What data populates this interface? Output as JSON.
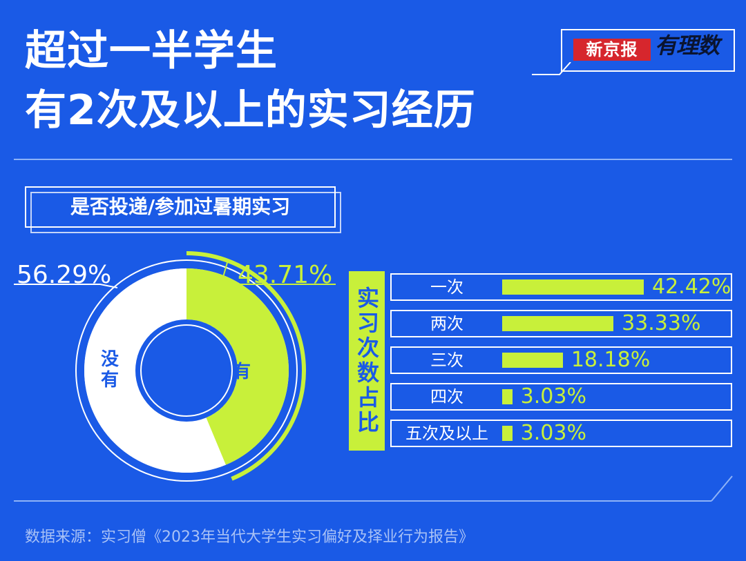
{
  "title": {
    "line1": "超过一半学生",
    "line2": "有2次及以上的实习经历"
  },
  "brand": {
    "newspaper": "新京报",
    "column": "有理数"
  },
  "colors": {
    "background": "#1a5ae6",
    "accent": "#c8f03a",
    "white": "#ffffff",
    "brand_red": "#d6262d"
  },
  "source_text": "数据来源：实习僧《2023年当代大学生实习偏好及择业行为报告》",
  "chart_data": [
    {
      "type": "pie",
      "title": "是否投递/参加过暑期实习",
      "slices": [
        {
          "label": "没有",
          "value": 56.29,
          "display": "56.29%"
        },
        {
          "label": "有",
          "value": 43.71,
          "display": "43.71%"
        }
      ]
    },
    {
      "type": "bar",
      "title": "实习次数占比",
      "categories": [
        "一次",
        "两次",
        "三次",
        "四次",
        "五次及以上"
      ],
      "values": [
        42.42,
        33.33,
        18.18,
        3.03,
        3.03
      ],
      "labels": [
        "42.42%",
        "33.33%",
        "18.18%",
        "3.03%",
        "3.03%"
      ]
    }
  ]
}
